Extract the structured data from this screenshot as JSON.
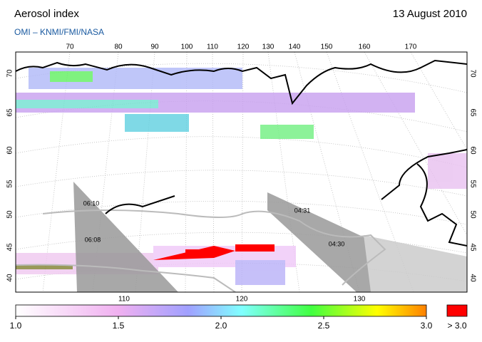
{
  "header": {
    "title": "Aerosol index",
    "date": "13 August 2010",
    "subtitle": "OMI  –  KNMI/FMI/NASA"
  },
  "map": {
    "lon_labels_top": [
      70,
      80,
      90,
      100,
      110,
      120,
      130,
      140,
      150,
      160,
      170
    ],
    "lat_labels": [
      70,
      65,
      60,
      55,
      50,
      45,
      40
    ],
    "lon_labels_bottom": [
      110,
      120,
      130
    ],
    "overpass_times": [
      "06:10",
      "06:08",
      "04:31",
      "04:30"
    ]
  },
  "colorbar": {
    "range": [
      1,
      3
    ],
    "ticks": [
      {
        "value": 1,
        "label": "1.0"
      },
      {
        "value": 1.5,
        "label": "1.5"
      },
      {
        "value": 2,
        "label": "2.0"
      },
      {
        "value": 2.5,
        "label": "2.5"
      },
      {
        "value": 3,
        "label": "3.0"
      }
    ],
    "over_label": "> 3.0"
  }
}
